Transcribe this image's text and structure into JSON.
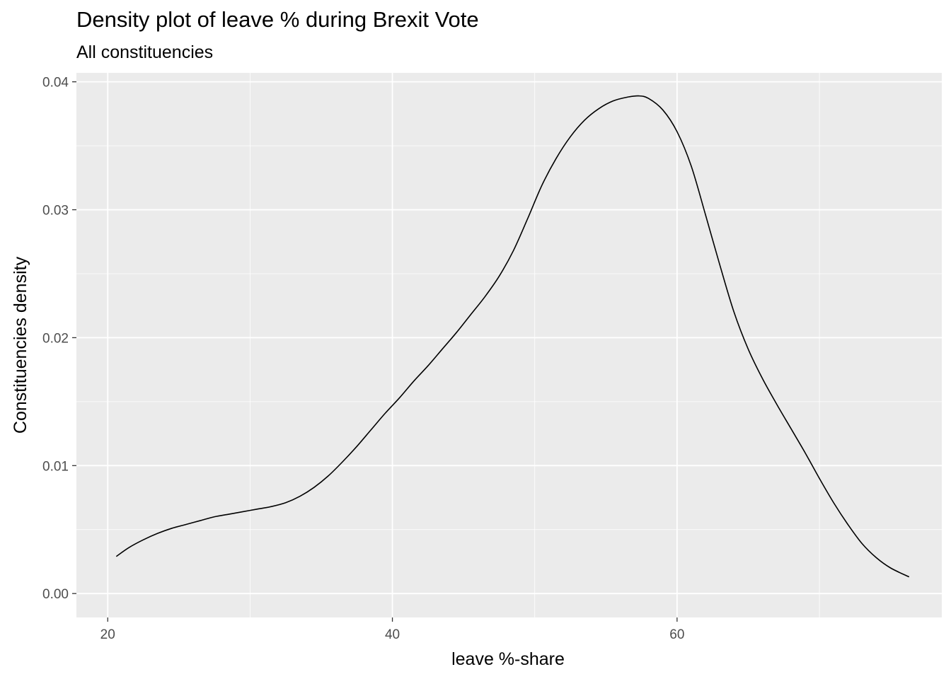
{
  "chart_data": {
    "type": "line",
    "title": "Density plot of leave % during Brexit Vote",
    "subtitle": "All constituencies",
    "xlabel": "leave %-share",
    "ylabel": "Constituencies density",
    "xlim": [
      17.8,
      78.6
    ],
    "ylim": [
      -0.00187,
      0.0407
    ],
    "x_ticks": [
      20,
      40,
      60
    ],
    "x_tick_labels": [
      "20",
      "40",
      "60"
    ],
    "y_ticks": [
      0.0,
      0.01,
      0.02,
      0.03,
      0.04
    ],
    "y_tick_labels": [
      "0.00",
      "0.01",
      "0.02",
      "0.03",
      "0.04"
    ],
    "grid": true,
    "background": "#EBEBEB",
    "grid_color": "#FFFFFF",
    "line_color": "#000000",
    "series": [
      {
        "x": [
          20.6,
          21.5,
          22.5,
          23.5,
          24.5,
          25.5,
          26.5,
          27.5,
          28.5,
          29.5,
          30.5,
          31.5,
          32.5,
          33.5,
          34.5,
          35.5,
          36.5,
          37.5,
          38.5,
          39.5,
          40.5,
          41.5,
          42.5,
          43.5,
          44.5,
          45.5,
          46.5,
          47.5,
          48.5,
          49.5,
          50.5,
          51.5,
          52.5,
          53.5,
          54.5,
          55.5,
          56.5,
          57.3,
          58.0,
          59.0,
          60.0,
          61.0,
          62.0,
          63.0,
          64.0,
          65.0,
          66.0,
          67.0,
          68.0,
          69.0,
          70.0,
          71.0,
          72.0,
          73.0,
          74.0,
          75.0,
          76.3
        ],
        "y": [
          0.0029,
          0.0036,
          0.0042,
          0.0047,
          0.0051,
          0.0054,
          0.0057,
          0.006,
          0.0062,
          0.0064,
          0.0066,
          0.0068,
          0.0071,
          0.0076,
          0.0083,
          0.0092,
          0.0103,
          0.0115,
          0.0128,
          0.0141,
          0.0153,
          0.0166,
          0.0178,
          0.0191,
          0.0204,
          0.0218,
          0.0232,
          0.0248,
          0.0268,
          0.0293,
          0.0319,
          0.034,
          0.0357,
          0.037,
          0.0379,
          0.0385,
          0.0388,
          0.0389,
          0.0387,
          0.0378,
          0.0361,
          0.0334,
          0.0296,
          0.0257,
          0.022,
          0.0191,
          0.0168,
          0.0148,
          0.0129,
          0.011,
          0.009,
          0.0071,
          0.0054,
          0.0039,
          0.0028,
          0.002,
          0.0013
        ]
      }
    ]
  }
}
